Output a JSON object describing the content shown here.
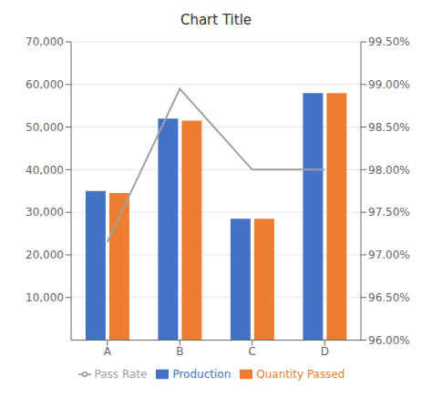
{
  "chart_data": {
    "type": "bar",
    "title": "Chart Title",
    "categories": [
      "A",
      "B",
      "C",
      "D"
    ],
    "series": [
      {
        "name": "Production",
        "type": "bar",
        "color": "#4472C4",
        "values": [
          35000,
          52000,
          28500,
          58000
        ]
      },
      {
        "name": "Quantity Passed",
        "type": "bar",
        "color": "#ED7D31",
        "values": [
          34500,
          51500,
          28500,
          58000
        ]
      },
      {
        "name": "Pass Rate",
        "type": "line",
        "color": "#A0A0A0",
        "axis": "y2",
        "values": [
          0.9715,
          0.9895,
          0.98,
          0.98
        ]
      }
    ],
    "ylim": [
      0,
      70000
    ],
    "yticks": [
      {
        "value": 10000,
        "label": "10,000"
      },
      {
        "value": 20000,
        "label": "20,000"
      },
      {
        "value": 30000,
        "label": "30,000"
      },
      {
        "value": 40000,
        "label": "40,000"
      },
      {
        "value": 50000,
        "label": "50,000"
      },
      {
        "value": 60000,
        "label": "60,000"
      },
      {
        "value": 70000,
        "label": "70,000"
      }
    ],
    "y2lim": [
      0.96,
      0.995
    ],
    "y2ticks": [
      {
        "value": 0.96,
        "label": "96.00%"
      },
      {
        "value": 0.965,
        "label": "96.50%"
      },
      {
        "value": 0.97,
        "label": "97.00%"
      },
      {
        "value": 0.975,
        "label": "97.50%"
      },
      {
        "value": 0.98,
        "label": "98.00%"
      },
      {
        "value": 0.985,
        "label": "98.50%"
      },
      {
        "value": 0.99,
        "label": "99.00%"
      },
      {
        "value": 0.995,
        "label": "99.50%"
      }
    ],
    "grid": true,
    "legend": "bottom"
  }
}
